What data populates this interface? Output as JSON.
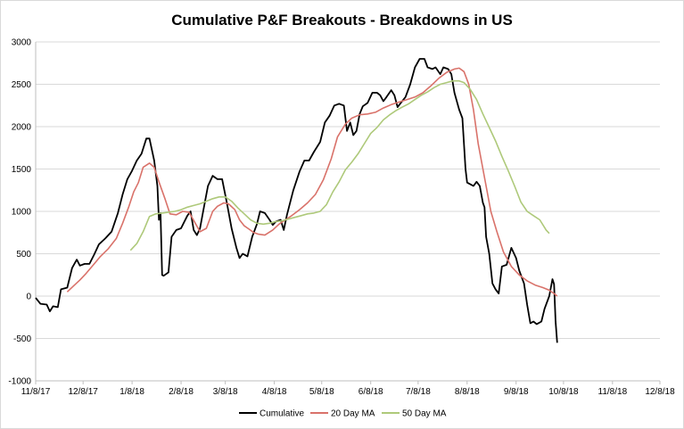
{
  "chart_data": {
    "type": "line",
    "title": "Cumulative P&F Breakouts - Breakdowns in US",
    "xlabel": "",
    "ylabel": "",
    "ylim": [
      -1000,
      3000
    ],
    "yticks": [
      -1000,
      -500,
      0,
      500,
      1000,
      1500,
      2000,
      2500,
      3000
    ],
    "xlim": [
      0,
      395
    ],
    "xtick_labels": [
      "11/8/17",
      "12/8/17",
      "1/8/18",
      "2/8/18",
      "3/8/18",
      "4/8/18",
      "5/8/18",
      "6/8/18",
      "7/8/18",
      "8/8/18",
      "9/8/18",
      "10/8/18",
      "11/8/18",
      "12/8/18"
    ],
    "xtick_days": [
      0,
      30,
      61,
      92,
      120,
      151,
      181,
      212,
      242,
      273,
      304,
      334,
      365,
      395
    ],
    "legend_position": "bottom",
    "series": [
      {
        "name": "Cumulative",
        "color": "#000000",
        "points": [
          [
            0,
            -20
          ],
          [
            3,
            -90
          ],
          [
            7,
            -100
          ],
          [
            9,
            -180
          ],
          [
            11,
            -120
          ],
          [
            14,
            -130
          ],
          [
            16,
            80
          ],
          [
            20,
            100
          ],
          [
            23,
            330
          ],
          [
            26,
            430
          ],
          [
            28,
            360
          ],
          [
            31,
            380
          ],
          [
            34,
            380
          ],
          [
            37,
            490
          ],
          [
            40,
            610
          ],
          [
            44,
            680
          ],
          [
            48,
            760
          ],
          [
            52,
            980
          ],
          [
            55,
            1200
          ],
          [
            58,
            1380
          ],
          [
            61,
            1480
          ],
          [
            64,
            1600
          ],
          [
            67,
            1680
          ],
          [
            70,
            1860
          ],
          [
            72,
            1860
          ],
          [
            75,
            1600
          ],
          [
            77,
            1300
          ],
          [
            78,
            900
          ],
          [
            79,
            980
          ],
          [
            80,
            250
          ],
          [
            81,
            240
          ],
          [
            84,
            280
          ],
          [
            86,
            700
          ],
          [
            89,
            780
          ],
          [
            92,
            800
          ],
          [
            96,
            950
          ],
          [
            98,
            1000
          ],
          [
            100,
            780
          ],
          [
            102,
            720
          ],
          [
            104,
            800
          ],
          [
            106,
            1000
          ],
          [
            109,
            1300
          ],
          [
            112,
            1420
          ],
          [
            115,
            1380
          ],
          [
            118,
            1380
          ],
          [
            121,
            1100
          ],
          [
            124,
            800
          ],
          [
            127,
            570
          ],
          [
            129,
            450
          ],
          [
            131,
            500
          ],
          [
            134,
            470
          ],
          [
            137,
            700
          ],
          [
            140,
            850
          ],
          [
            142,
            1000
          ],
          [
            145,
            980
          ],
          [
            148,
            900
          ],
          [
            150,
            840
          ],
          [
            152,
            880
          ],
          [
            155,
            900
          ],
          [
            157,
            780
          ],
          [
            159,
            960
          ],
          [
            163,
            1250
          ],
          [
            167,
            1470
          ],
          [
            170,
            1600
          ],
          [
            173,
            1600
          ],
          [
            176,
            1700
          ],
          [
            180,
            1820
          ],
          [
            183,
            2050
          ],
          [
            186,
            2130
          ],
          [
            189,
            2250
          ],
          [
            192,
            2270
          ],
          [
            195,
            2250
          ],
          [
            197,
            1950
          ],
          [
            199,
            2050
          ],
          [
            201,
            1900
          ],
          [
            203,
            1950
          ],
          [
            205,
            2150
          ],
          [
            207,
            2240
          ],
          [
            210,
            2280
          ],
          [
            213,
            2400
          ],
          [
            216,
            2400
          ],
          [
            218,
            2370
          ],
          [
            220,
            2300
          ],
          [
            222,
            2350
          ],
          [
            225,
            2430
          ],
          [
            227,
            2370
          ],
          [
            229,
            2230
          ],
          [
            231,
            2280
          ],
          [
            234,
            2350
          ],
          [
            237,
            2500
          ],
          [
            240,
            2700
          ],
          [
            243,
            2800
          ],
          [
            246,
            2800
          ],
          [
            248,
            2700
          ],
          [
            251,
            2680
          ],
          [
            253,
            2700
          ],
          [
            256,
            2620
          ],
          [
            258,
            2700
          ],
          [
            261,
            2680
          ],
          [
            263,
            2620
          ],
          [
            265,
            2400
          ],
          [
            268,
            2200
          ],
          [
            270,
            2100
          ],
          [
            272,
            1500
          ],
          [
            273,
            1340
          ],
          [
            275,
            1320
          ],
          [
            277,
            1300
          ],
          [
            279,
            1350
          ],
          [
            281,
            1300
          ],
          [
            283,
            1100
          ],
          [
            284,
            1050
          ],
          [
            285,
            700
          ],
          [
            287,
            500
          ],
          [
            289,
            150
          ],
          [
            291,
            80
          ],
          [
            293,
            30
          ],
          [
            295,
            350
          ],
          [
            298,
            370
          ],
          [
            301,
            570
          ],
          [
            304,
            450
          ],
          [
            306,
            300
          ],
          [
            309,
            150
          ],
          [
            311,
            -100
          ],
          [
            313,
            -320
          ],
          [
            315,
            -300
          ],
          [
            317,
            -330
          ],
          [
            320,
            -300
          ],
          [
            322,
            -150
          ],
          [
            325,
            0
          ],
          [
            327,
            200
          ],
          [
            328,
            140
          ],
          [
            329,
            -300
          ],
          [
            330,
            -550
          ]
        ]
      },
      {
        "name": "20 Day MA",
        "color": "#d9726a",
        "points": [
          [
            20,
            50
          ],
          [
            24,
            120
          ],
          [
            28,
            190
          ],
          [
            32,
            270
          ],
          [
            37,
            380
          ],
          [
            41,
            470
          ],
          [
            46,
            560
          ],
          [
            51,
            680
          ],
          [
            55,
            860
          ],
          [
            59,
            1060
          ],
          [
            62,
            1230
          ],
          [
            65,
            1340
          ],
          [
            68,
            1520
          ],
          [
            72,
            1570
          ],
          [
            75,
            1520
          ],
          [
            78,
            1350
          ],
          [
            82,
            1140
          ],
          [
            85,
            970
          ],
          [
            89,
            960
          ],
          [
            93,
            1000
          ],
          [
            97,
            990
          ],
          [
            101,
            860
          ],
          [
            104,
            760
          ],
          [
            108,
            800
          ],
          [
            112,
            1000
          ],
          [
            115,
            1060
          ],
          [
            119,
            1100
          ],
          [
            122,
            1090
          ],
          [
            126,
            1020
          ],
          [
            129,
            900
          ],
          [
            132,
            830
          ],
          [
            135,
            790
          ],
          [
            138,
            750
          ],
          [
            141,
            730
          ],
          [
            145,
            720
          ],
          [
            150,
            780
          ],
          [
            154,
            850
          ],
          [
            158,
            900
          ],
          [
            162,
            950
          ],
          [
            167,
            1020
          ],
          [
            172,
            1100
          ],
          [
            177,
            1200
          ],
          [
            182,
            1370
          ],
          [
            187,
            1620
          ],
          [
            191,
            1880
          ],
          [
            196,
            2030
          ],
          [
            200,
            2100
          ],
          [
            205,
            2140
          ],
          [
            210,
            2150
          ],
          [
            215,
            2170
          ],
          [
            220,
            2220
          ],
          [
            225,
            2260
          ],
          [
            230,
            2290
          ],
          [
            235,
            2320
          ],
          [
            240,
            2350
          ],
          [
            245,
            2400
          ],
          [
            250,
            2480
          ],
          [
            255,
            2570
          ],
          [
            260,
            2640
          ],
          [
            265,
            2680
          ],
          [
            268,
            2690
          ],
          [
            271,
            2650
          ],
          [
            274,
            2500
          ],
          [
            277,
            2200
          ],
          [
            280,
            1800
          ],
          [
            284,
            1400
          ],
          [
            288,
            1000
          ],
          [
            292,
            750
          ],
          [
            296,
            520
          ],
          [
            301,
            350
          ],
          [
            306,
            250
          ],
          [
            311,
            180
          ],
          [
            316,
            130
          ],
          [
            321,
            100
          ],
          [
            325,
            70
          ],
          [
            328,
            30
          ],
          [
            330,
            0
          ]
        ]
      },
      {
        "name": "50 Day MA",
        "color": "#aec97a",
        "points": [
          [
            60,
            540
          ],
          [
            64,
            620
          ],
          [
            68,
            760
          ],
          [
            72,
            940
          ],
          [
            76,
            970
          ],
          [
            80,
            980
          ],
          [
            84,
            990
          ],
          [
            88,
            1000
          ],
          [
            92,
            1020
          ],
          [
            96,
            1050
          ],
          [
            100,
            1070
          ],
          [
            104,
            1090
          ],
          [
            108,
            1120
          ],
          [
            112,
            1150
          ],
          [
            116,
            1170
          ],
          [
            120,
            1170
          ],
          [
            124,
            1120
          ],
          [
            128,
            1040
          ],
          [
            132,
            970
          ],
          [
            136,
            900
          ],
          [
            140,
            860
          ],
          [
            144,
            850
          ],
          [
            148,
            860
          ],
          [
            152,
            880
          ],
          [
            156,
            890
          ],
          [
            160,
            910
          ],
          [
            164,
            930
          ],
          [
            168,
            950
          ],
          [
            172,
            970
          ],
          [
            176,
            980
          ],
          [
            180,
            1000
          ],
          [
            184,
            1080
          ],
          [
            188,
            1230
          ],
          [
            192,
            1350
          ],
          [
            196,
            1490
          ],
          [
            200,
            1580
          ],
          [
            204,
            1680
          ],
          [
            208,
            1800
          ],
          [
            212,
            1920
          ],
          [
            216,
            1990
          ],
          [
            220,
            2080
          ],
          [
            224,
            2140
          ],
          [
            228,
            2190
          ],
          [
            232,
            2230
          ],
          [
            236,
            2270
          ],
          [
            240,
            2320
          ],
          [
            244,
            2370
          ],
          [
            248,
            2410
          ],
          [
            252,
            2460
          ],
          [
            256,
            2500
          ],
          [
            260,
            2520
          ],
          [
            264,
            2540
          ],
          [
            268,
            2540
          ],
          [
            271,
            2520
          ],
          [
            275,
            2440
          ],
          [
            279,
            2320
          ],
          [
            283,
            2150
          ],
          [
            287,
            1990
          ],
          [
            291,
            1830
          ],
          [
            295,
            1650
          ],
          [
            299,
            1480
          ],
          [
            303,
            1300
          ],
          [
            307,
            1110
          ],
          [
            311,
            1000
          ],
          [
            315,
            950
          ],
          [
            319,
            900
          ],
          [
            323,
            780
          ],
          [
            325,
            740
          ]
        ]
      }
    ]
  }
}
